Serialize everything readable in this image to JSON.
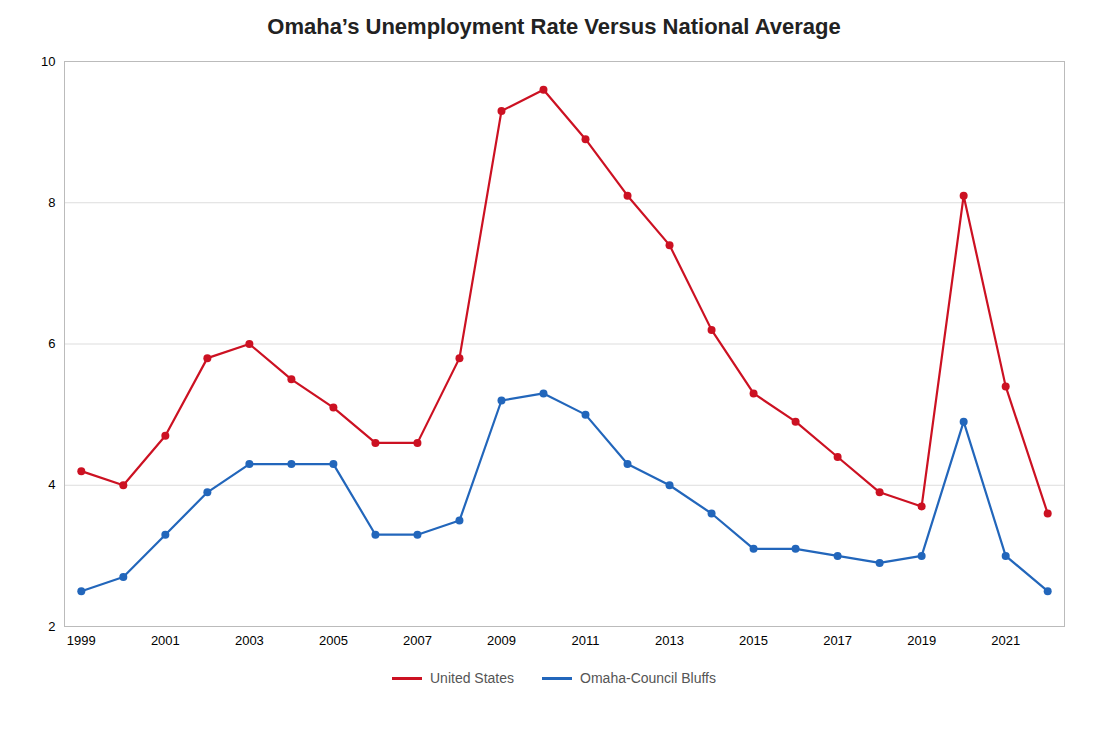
{
  "chart_data": {
    "type": "line",
    "title": "Omaha’s Unemployment Rate Versus National Average",
    "x": [
      1999,
      2000,
      2001,
      2002,
      2003,
      2004,
      2005,
      2006,
      2007,
      2008,
      2009,
      2010,
      2011,
      2012,
      2013,
      2014,
      2015,
      2016,
      2017,
      2018,
      2019,
      2020,
      2021,
      2022
    ],
    "series": [
      {
        "name": "United States",
        "color": "#cc1122",
        "marker": "circle",
        "values": [
          4.2,
          4.0,
          4.7,
          5.8,
          6.0,
          5.5,
          5.1,
          4.6,
          4.6,
          5.8,
          9.3,
          9.6,
          8.9,
          8.1,
          7.4,
          6.2,
          5.3,
          4.9,
          4.4,
          3.9,
          3.7,
          8.1,
          5.4,
          3.6
        ]
      },
      {
        "name": "Omaha-Council Bluffs",
        "color": "#2266bb",
        "marker": "circle",
        "values": [
          2.5,
          2.7,
          3.3,
          3.9,
          4.3,
          4.3,
          4.3,
          3.3,
          3.3,
          3.5,
          5.2,
          5.3,
          5.0,
          4.3,
          4.0,
          3.6,
          3.1,
          3.1,
          3.0,
          2.9,
          3.0,
          4.9,
          3.0,
          2.5
        ]
      }
    ],
    "xlim": [
      1998.6,
      2022.4
    ],
    "xticks": [
      1999,
      2001,
      2003,
      2005,
      2007,
      2009,
      2011,
      2013,
      2015,
      2017,
      2019,
      2021
    ],
    "ylim": [
      2,
      10
    ],
    "yticks": [
      2,
      4,
      6,
      8,
      10
    ],
    "grid": "y",
    "legend": "bottom"
  }
}
